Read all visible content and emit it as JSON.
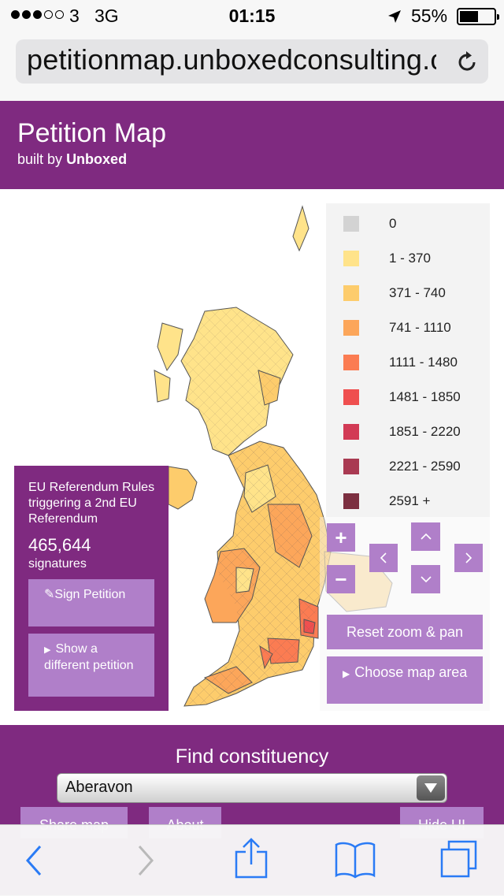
{
  "status_bar": {
    "carrier": "3",
    "network": "3G",
    "time": "01:15",
    "battery_percent": "55%",
    "battery_level": 0.55,
    "signal_bars_filled": 3,
    "signal_bars_total": 5
  },
  "browser": {
    "url": "petitionmap.unboxedconsulting.com",
    "reload_icon": "reload-icon"
  },
  "header": {
    "title": "Petition Map",
    "subtitle_prefix": "built by",
    "subtitle_brand": "Unboxed"
  },
  "legend": [
    {
      "label": "0",
      "color": "#d3d3d3"
    },
    {
      "label": "1 - 370",
      "color": "#ffe38a"
    },
    {
      "label": "371 - 740",
      "color": "#fdcc6c"
    },
    {
      "label": "741 - 1110",
      "color": "#fca65a"
    },
    {
      "label": "1111 - 1480",
      "color": "#fb7c52"
    },
    {
      "label": "1481 - 1850",
      "color": "#ef4f4f"
    },
    {
      "label": "1851 - 2220",
      "color": "#d23a55"
    },
    {
      "label": "2221 - 2590",
      "color": "#a93a52"
    },
    {
      "label": "2591 +",
      "color": "#7c2f40"
    }
  ],
  "controls": {
    "zoom_in": "+",
    "zoom_out": "−",
    "pan_up": "^",
    "pan_left": "<",
    "pan_right": ">",
    "pan_down": "v",
    "reset": "Reset zoom & pan",
    "choose_area": "Choose map area"
  },
  "petition": {
    "title": "EU Referendum Rules triggering a 2nd EU Referendum",
    "count": "465,644",
    "count_label": "signatures",
    "sign_button": "Sign Petition",
    "show_different": "Show a different petition"
  },
  "find": {
    "title": "Find constituency",
    "selected": "Aberavon",
    "buttons": [
      "Share map",
      "About",
      "Hide UI"
    ]
  },
  "toolbar": {
    "icons": [
      "back-icon",
      "forward-icon",
      "share-icon",
      "bookmarks-icon",
      "tabs-icon"
    ]
  },
  "colors": {
    "brand_purple": "#7f2a80",
    "button_purple": "#b07fc9",
    "ios_blue": "#2a7bf5"
  }
}
